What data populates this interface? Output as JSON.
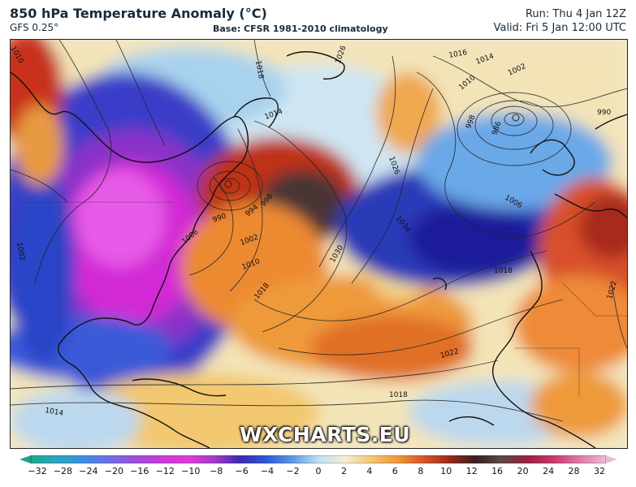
{
  "header": {
    "title": "850 hPa Temperature Anomaly (°C)",
    "model": "GFS 0.25°",
    "base": "Base: CFSR 1981-2010 climatology",
    "run": "Run: Thu 4 Jan 12Z",
    "valid": "Valid: Fri 5 Jan 12:00 UTC"
  },
  "watermark": "WXCHARTS.EU",
  "colorbar": {
    "ticks": [
      "−32",
      "−28",
      "−24",
      "−20",
      "−16",
      "−12",
      "−10",
      "−8",
      "−6",
      "−4",
      "−2",
      "0",
      "2",
      "4",
      "6",
      "8",
      "10",
      "12",
      "16",
      "20",
      "24",
      "28",
      "32"
    ],
    "colors": [
      "#1aa88a",
      "#2aa6c0",
      "#3d8fe0",
      "#6f6de8",
      "#a04bdc",
      "#c83bd8",
      "#e23ad8",
      "#a83ac8",
      "#3a2ab0",
      "#2f57d8",
      "#5a9ae8",
      "#bfe0f2",
      "#f5eed6",
      "#f2c870",
      "#ee9a3a",
      "#d8572a",
      "#9a2a1c",
      "#3a2020",
      "#5a4a48",
      "#9a2040",
      "#c83a6a",
      "#e07aa8",
      "#f0b8d8"
    ],
    "arrow_left": "#1aa88a",
    "arrow_right": "#f0b8d8"
  },
  "map": {
    "isobar_labels": [
      "1018",
      "1026",
      "1016",
      "1014",
      "1002",
      "990",
      "1010",
      "998",
      "986",
      "1014",
      "1026",
      "1034",
      "1006",
      "1018",
      "990",
      "994",
      "998",
      "1002",
      "1010",
      "1018",
      "1030",
      "1006",
      "1022",
      "1018",
      "1014",
      "1010",
      "1022",
      "1002"
    ]
  }
}
